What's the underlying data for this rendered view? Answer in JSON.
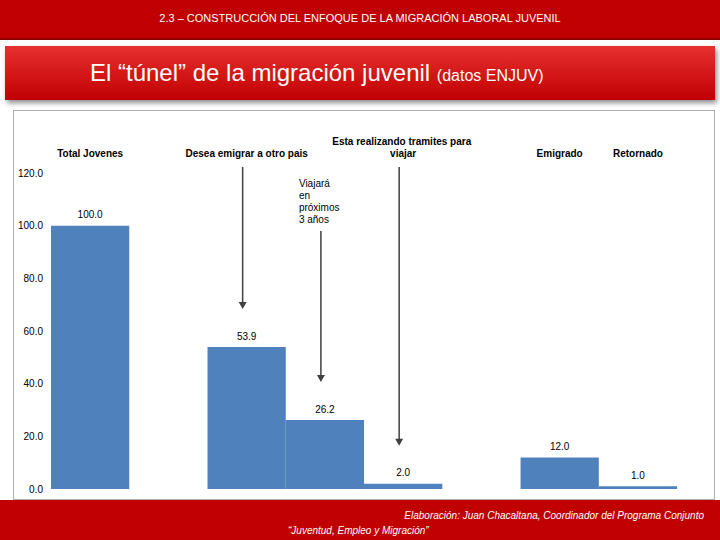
{
  "header": "2.3 – CONSTRUCCIÓN DEL ENFOQUE DE LA MIGRACIÓN LABORAL JUVENIL",
  "footer": {
    "credit": "Elaboración: Juan Chacaltana, Coordinador del Programa Conjunto",
    "program": "“Juventud, Empleo y Migración”"
  },
  "chart_data": {
    "type": "bar",
    "title": "El “túnel” de la migración juvenil",
    "subtitle": "(datos ENJUV)",
    "categories": [
      "Total Jovenes",
      null,
      "Desea emigrar a otro pais",
      null,
      "Esta realizando tramites para viajar",
      null,
      "Emigrado",
      "Retornado"
    ],
    "values": [
      100,
      null,
      53.9,
      26.2,
      2,
      null,
      12,
      1
    ],
    "value_labels": [
      "100.0",
      null,
      "53.9",
      "26.2",
      "2.0",
      null,
      "12.0",
      "1.0"
    ],
    "color": "#4f81bd",
    "ylim": [
      0,
      120
    ],
    "yticks": [
      {
        "value": 0,
        "label": "0.0"
      },
      {
        "value": 20,
        "label": "20.0"
      },
      {
        "value": 40,
        "label": "40.0"
      },
      {
        "value": 60,
        "label": "60.0"
      },
      {
        "value": 80,
        "label": "80.0"
      },
      {
        "value": 100,
        "label": "100.0"
      },
      {
        "value": 120,
        "label": "120.0"
      }
    ],
    "grid": false,
    "data_labels": true,
    "annotations": [
      {
        "text": "Viajará en próximos 3 años",
        "x": 3
      }
    ]
  }
}
